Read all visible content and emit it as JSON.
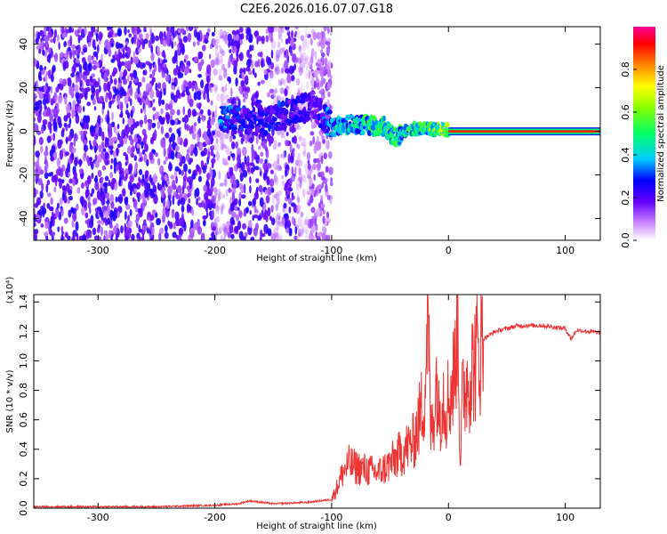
{
  "figure_title": "C2E6.2026.016.07.07.G18",
  "chart_data": [
    {
      "type": "heatmap",
      "title": "C2E6.2026.016.07.07.G18",
      "xlabel": "Height of straight line (km)",
      "ylabel": "Frequency (Hz)",
      "xlim": [
        -355,
        130
      ],
      "ylim": [
        -50,
        48
      ],
      "xticks": [
        -300,
        -200,
        -100,
        0,
        100
      ],
      "yticks": [
        -40,
        -20,
        0,
        20,
        40
      ],
      "xtick_labels": [
        "-300",
        "-200",
        "-100",
        "0",
        "100"
      ],
      "ytick_labels": [
        "-40",
        "-20",
        "0",
        "20",
        "40"
      ],
      "colorbar": {
        "label": "Normalized spectral amplitude",
        "range": [
          0,
          1
        ],
        "ticks": [
          0.0,
          0.2,
          0.4,
          0.6,
          0.8
        ],
        "tick_labels": [
          "0.0",
          "0.2",
          "0.4",
          "0.6",
          "0.8"
        ],
        "colormap": [
          "#ffffff",
          "#8a00ff",
          "#2400ff",
          "#00c8ff",
          "#00ff00",
          "#ffff00",
          "#ff8000",
          "#ff0000",
          "#ff00a0"
        ]
      },
      "description_points": {
        "noise_region": [
          -355,
          -120
        ],
        "noise_gaps": [
          [
            -200,
            -188
          ],
          [
            -150,
            -140
          ],
          [
            -130,
            -120
          ]
        ],
        "signal_track": [
          {
            "x": -195,
            "y": 5,
            "amp": 0.35
          },
          {
            "x": -180,
            "y": 6,
            "amp": 0.3
          },
          {
            "x": -160,
            "y": 4,
            "amp": 0.25
          },
          {
            "x": -145,
            "y": 7,
            "amp": 0.3
          },
          {
            "x": -130,
            "y": 10,
            "amp": 0.25
          },
          {
            "x": -115,
            "y": 12,
            "amp": 0.2
          },
          {
            "x": -100,
            "y": 2,
            "amp": 0.4
          },
          {
            "x": -85,
            "y": 3,
            "amp": 0.45
          },
          {
            "x": -70,
            "y": 3,
            "amp": 0.5
          },
          {
            "x": -55,
            "y": 2,
            "amp": 0.55
          },
          {
            "x": -45,
            "y": -3,
            "amp": 0.5
          },
          {
            "x": -35,
            "y": 1,
            "amp": 0.5
          },
          {
            "x": -20,
            "y": 1,
            "amp": 0.55
          },
          {
            "x": -10,
            "y": 1,
            "amp": 0.6
          },
          {
            "x": 0,
            "y": 0.5,
            "amp": 0.7
          }
        ],
        "carrier_line": {
          "y": 0,
          "from": 0,
          "to": 130,
          "amp": 0.9
        }
      }
    },
    {
      "type": "line",
      "title": "",
      "xlabel": "Height of straight line (km)",
      "ylabel": "SNR (10 * v/v)",
      "ylabel_multiplier": "(x10⁴)",
      "xlim": [
        -355,
        130
      ],
      "ylim": [
        0,
        1.45
      ],
      "xticks": [
        -300,
        -200,
        -100,
        0,
        100
      ],
      "yticks": [
        0.0,
        0.2,
        0.4,
        0.6,
        0.8,
        1.0,
        1.2,
        1.4
      ],
      "xtick_labels": [
        "-300",
        "-200",
        "-100",
        "0",
        "100"
      ],
      "ytick_labels": [
        "0.0",
        "0.2",
        "0.4",
        "0.6",
        "0.8",
        "1.0",
        "1.2",
        "1.4"
      ],
      "color": "#ee3333",
      "series": [
        {
          "name": "SNR",
          "x": [
            -355,
            -300,
            -250,
            -200,
            -180,
            -170,
            -150,
            -120,
            -110,
            -100,
            -95,
            -90,
            -85,
            -80,
            -70,
            -60,
            -50,
            -40,
            -30,
            -25,
            -20,
            -18,
            -15,
            -12,
            -10,
            -8,
            -5,
            -2,
            0,
            2,
            5,
            8,
            10,
            12,
            15,
            20,
            25,
            30,
            40,
            50,
            60,
            70,
            80,
            90,
            100,
            105,
            110,
            120,
            130
          ],
          "y": [
            0.01,
            0.01,
            0.01,
            0.02,
            0.03,
            0.05,
            0.03,
            0.04,
            0.05,
            0.06,
            0.15,
            0.25,
            0.3,
            0.28,
            0.26,
            0.24,
            0.3,
            0.38,
            0.45,
            0.6,
            0.8,
            1.38,
            0.5,
            0.7,
            0.9,
            0.6,
            0.8,
            0.7,
            0.75,
            0.8,
            0.9,
            1.4,
            0.3,
            0.75,
            0.85,
            0.95,
            1.05,
            1.15,
            1.2,
            1.22,
            1.24,
            1.24,
            1.24,
            1.23,
            1.22,
            1.15,
            1.21,
            1.2,
            1.19
          ]
        }
      ]
    }
  ]
}
